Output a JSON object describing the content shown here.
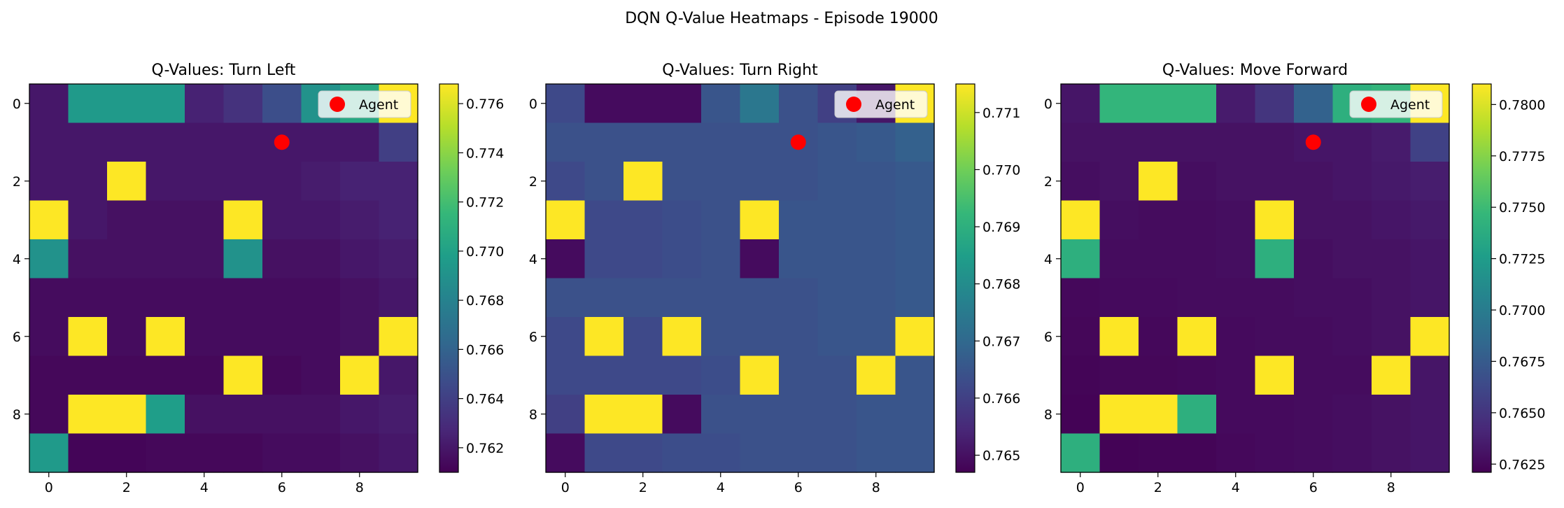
{
  "figure": {
    "title": "DQN Q-Value Heatmaps - Episode 19000"
  },
  "colormap": {
    "name": "viridis",
    "stops": [
      "#440154",
      "#482878",
      "#3e4989",
      "#31688e",
      "#26828e",
      "#1f9e89",
      "#35b779",
      "#6ece58",
      "#b5de2b",
      "#fde725"
    ]
  },
  "agent": {
    "label": "Agent",
    "x": 6,
    "y": 1,
    "color": "#ff0000"
  },
  "chart_data": [
    {
      "type": "heatmap",
      "title": "Q-Values: Turn Left",
      "x_ticks": [
        0,
        2,
        4,
        6,
        8
      ],
      "y_ticks": [
        0,
        2,
        4,
        6,
        8
      ],
      "vmin": 0.761,
      "vmax": 0.7768,
      "colorbar_ticks": [
        "0.762",
        "0.764",
        "0.766",
        "0.768",
        "0.770",
        "0.772",
        "0.774",
        "0.776"
      ],
      "legend": {
        "label": "Agent",
        "position": "top-right"
      },
      "values": [
        [
          0.762,
          0.7695,
          0.7695,
          0.7695,
          0.7625,
          0.7633,
          0.7648,
          0.769,
          0.7705,
          0.7768
        ],
        [
          0.762,
          0.762,
          0.762,
          0.762,
          0.762,
          0.762,
          0.762,
          0.762,
          0.762,
          0.764
        ],
        [
          0.762,
          0.762,
          0.7768,
          0.762,
          0.762,
          0.762,
          0.762,
          0.7622,
          0.7625,
          0.7625
        ],
        [
          0.7768,
          0.762,
          0.7617,
          0.7617,
          0.7617,
          0.7768,
          0.762,
          0.762,
          0.7622,
          0.7625
        ],
        [
          0.769,
          0.7617,
          0.7617,
          0.7617,
          0.7617,
          0.769,
          0.7617,
          0.7617,
          0.762,
          0.7622
        ],
        [
          0.7615,
          0.7615,
          0.7615,
          0.7615,
          0.7615,
          0.7615,
          0.7615,
          0.7615,
          0.7617,
          0.762
        ],
        [
          0.7615,
          0.7768,
          0.7615,
          0.7768,
          0.7615,
          0.7615,
          0.7615,
          0.7615,
          0.7617,
          0.7768
        ],
        [
          0.7613,
          0.7613,
          0.7613,
          0.7613,
          0.7613,
          0.7768,
          0.7613,
          0.7615,
          0.7768,
          0.762
        ],
        [
          0.7613,
          0.7768,
          0.7768,
          0.7698,
          0.7617,
          0.7617,
          0.7617,
          0.7617,
          0.762,
          0.7622
        ],
        [
          0.7695,
          0.7612,
          0.7612,
          0.7613,
          0.7613,
          0.7613,
          0.7615,
          0.7615,
          0.7617,
          0.762
        ]
      ]
    },
    {
      "type": "heatmap",
      "title": "Q-Values: Turn Right",
      "x_ticks": [
        0,
        2,
        4,
        6,
        8
      ],
      "y_ticks": [
        0,
        2,
        4,
        6,
        8
      ],
      "vmin": 0.7647,
      "vmax": 0.7715,
      "colorbar_ticks": [
        "0.765",
        "0.766",
        "0.767",
        "0.768",
        "0.769",
        "0.770",
        "0.771"
      ],
      "legend": {
        "label": "Agent",
        "position": "top-right"
      },
      "values": [
        [
          0.7662,
          0.7649,
          0.7649,
          0.7649,
          0.7665,
          0.7674,
          0.7664,
          0.766,
          0.7651,
          0.7715
        ],
        [
          0.7664,
          0.7664,
          0.7664,
          0.7664,
          0.7664,
          0.7664,
          0.7664,
          0.7665,
          0.7666,
          0.7668
        ],
        [
          0.7662,
          0.7664,
          0.7715,
          0.7664,
          0.7664,
          0.7664,
          0.7664,
          0.7665,
          0.7665,
          0.7666
        ],
        [
          0.7715,
          0.7662,
          0.7662,
          0.7663,
          0.7664,
          0.7715,
          0.7665,
          0.7665,
          0.7665,
          0.7666
        ],
        [
          0.7649,
          0.7662,
          0.7662,
          0.7663,
          0.7664,
          0.7649,
          0.7665,
          0.7665,
          0.7665,
          0.7666
        ],
        [
          0.7664,
          0.7664,
          0.7664,
          0.7664,
          0.7664,
          0.7664,
          0.7664,
          0.7665,
          0.7665,
          0.7666
        ],
        [
          0.7662,
          0.7715,
          0.7662,
          0.7715,
          0.7664,
          0.7664,
          0.7664,
          0.7665,
          0.7665,
          0.7715
        ],
        [
          0.7662,
          0.7662,
          0.7662,
          0.7662,
          0.7663,
          0.7715,
          0.7664,
          0.7664,
          0.7715,
          0.7665
        ],
        [
          0.766,
          0.7715,
          0.7715,
          0.7649,
          0.7664,
          0.7664,
          0.7664,
          0.7664,
          0.7665,
          0.7665
        ],
        [
          0.7649,
          0.7662,
          0.7662,
          0.7663,
          0.7663,
          0.7664,
          0.7664,
          0.7664,
          0.7665,
          0.7665
        ]
      ]
    },
    {
      "type": "heatmap",
      "title": "Q-Values: Move Forward",
      "x_ticks": [
        0,
        2,
        4,
        6,
        8
      ],
      "y_ticks": [
        0,
        2,
        4,
        6,
        8
      ],
      "vmin": 0.7621,
      "vmax": 0.781,
      "colorbar_ticks": [
        "0.7625",
        "0.7650",
        "0.7675",
        "0.7700",
        "0.7725",
        "0.7750",
        "0.7775",
        "0.7800"
      ],
      "legend": {
        "label": "Agent",
        "position": "top-right"
      },
      "values": [
        [
          0.7632,
          0.7745,
          0.7745,
          0.7745,
          0.7635,
          0.765,
          0.768,
          0.774,
          0.7745,
          0.781
        ],
        [
          0.763,
          0.763,
          0.763,
          0.763,
          0.763,
          0.763,
          0.7632,
          0.7632,
          0.7635,
          0.7658
        ],
        [
          0.7628,
          0.763,
          0.781,
          0.7628,
          0.763,
          0.763,
          0.763,
          0.7632,
          0.7634,
          0.7636
        ],
        [
          0.781,
          0.7628,
          0.7627,
          0.7627,
          0.7628,
          0.781,
          0.763,
          0.763,
          0.7632,
          0.7634
        ],
        [
          0.774,
          0.7627,
          0.7627,
          0.7627,
          0.7628,
          0.774,
          0.7628,
          0.763,
          0.763,
          0.7632
        ],
        [
          0.7625,
          0.7626,
          0.7626,
          0.7627,
          0.7627,
          0.7627,
          0.7628,
          0.7628,
          0.763,
          0.7632
        ],
        [
          0.7624,
          0.781,
          0.7625,
          0.781,
          0.7626,
          0.7627,
          0.7627,
          0.7628,
          0.763,
          0.781
        ],
        [
          0.7623,
          0.7624,
          0.7624,
          0.7625,
          0.7626,
          0.781,
          0.7627,
          0.7627,
          0.781,
          0.7632
        ],
        [
          0.7622,
          0.781,
          0.781,
          0.774,
          0.7626,
          0.7626,
          0.7627,
          0.7628,
          0.763,
          0.7632
        ],
        [
          0.774,
          0.7622,
          0.7623,
          0.7623,
          0.7625,
          0.7626,
          0.7627,
          0.7628,
          0.763,
          0.7632
        ]
      ]
    }
  ]
}
